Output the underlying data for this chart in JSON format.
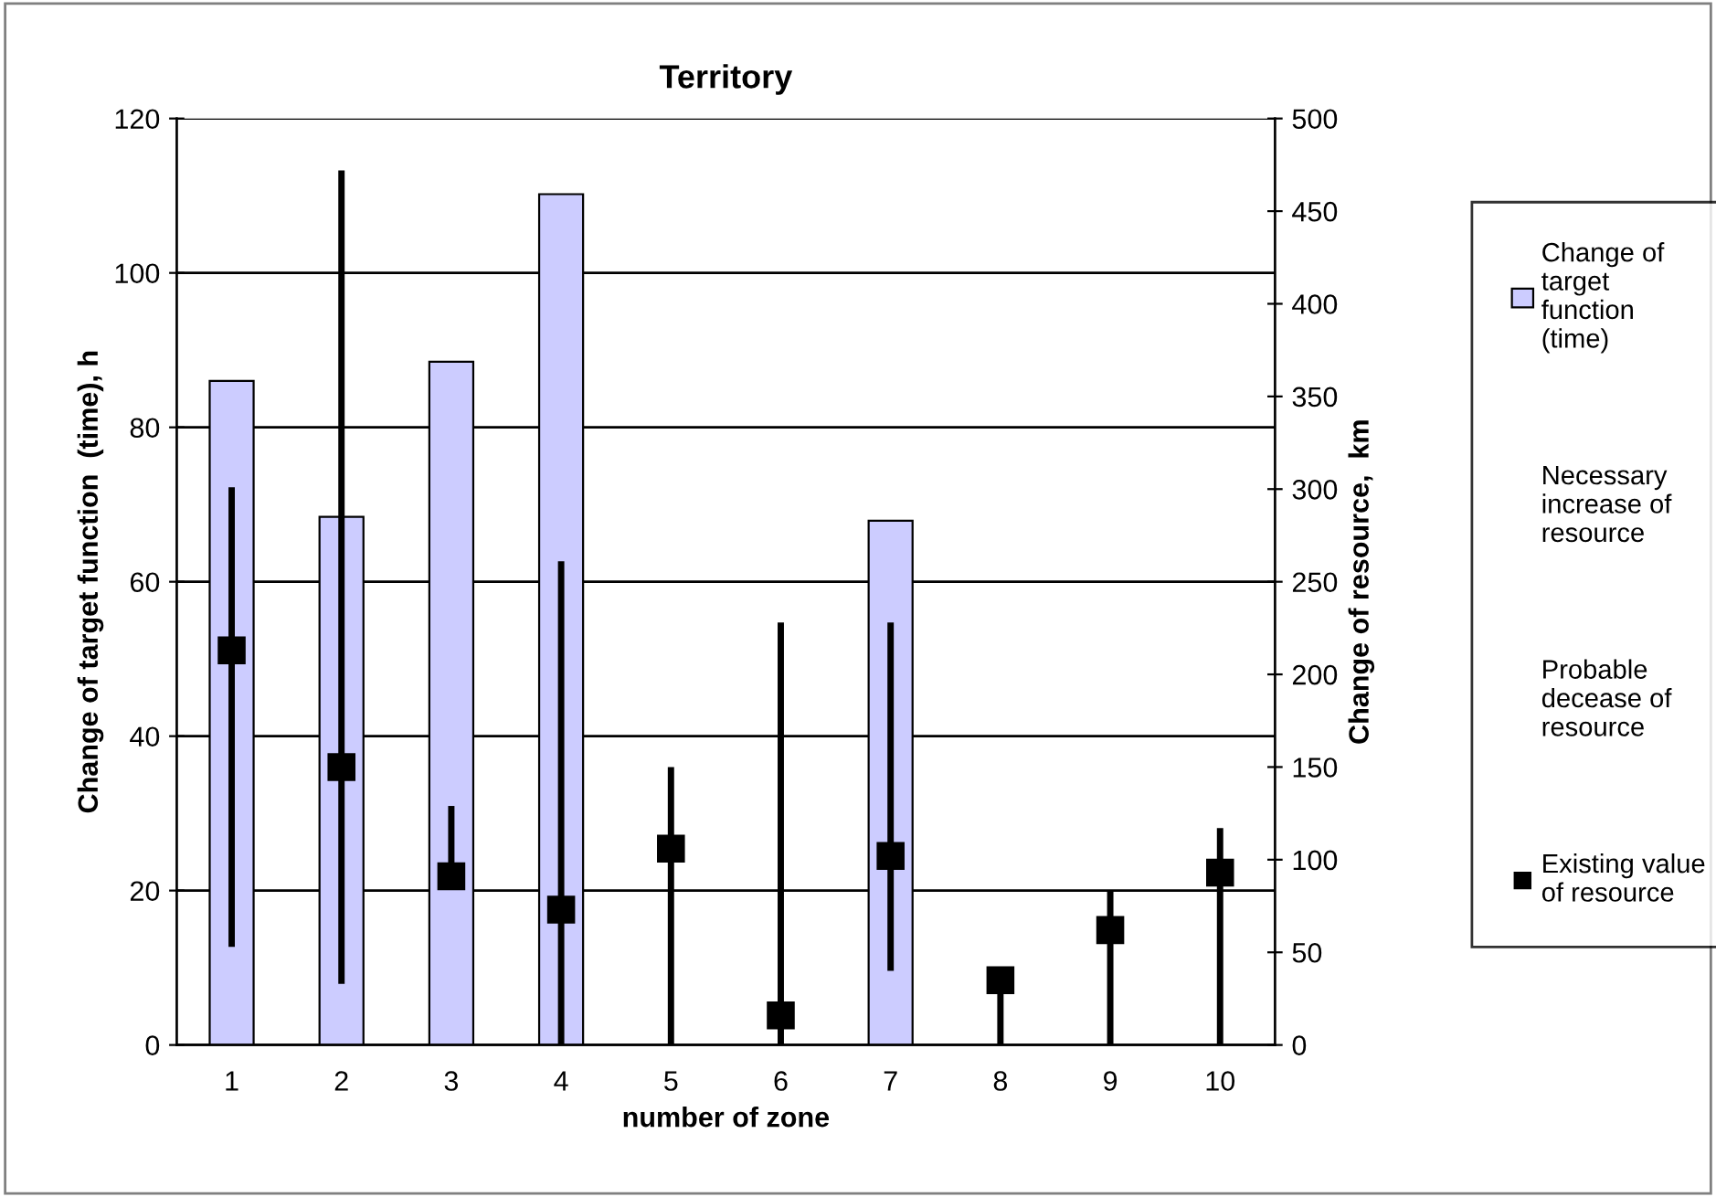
{
  "chart_data": {
    "type": "bar",
    "title": "Territory",
    "xlabel": "number of zone",
    "ylabel": "Change of target function  (time), h",
    "y2label": "Change of resource,  km",
    "categories": [
      "1",
      "2",
      "3",
      "4",
      "5",
      "6",
      "7",
      "8",
      "9",
      "10"
    ],
    "series": [
      {
        "name": "Change of target function (time)",
        "color": "#ccccff",
        "values": [
          86,
          68.4,
          88.5,
          110.2,
          null,
          null,
          67.9,
          null,
          null,
          null
        ]
      },
      {
        "name": "Existing value of resource",
        "type": "scatter",
        "axis": "y2",
        "color": "#000000",
        "marker": "square",
        "values": [
          213,
          150,
          91,
          73,
          106,
          16,
          102,
          35,
          62,
          93
        ],
        "errors": [
          [
            53,
            301
          ],
          [
            33,
            472
          ],
          [
            91,
            129
          ],
          [
            0,
            261
          ],
          [
            0,
            150
          ],
          [
            0,
            228
          ],
          [
            40,
            228
          ],
          [
            0,
            35
          ],
          [
            0,
            83
          ],
          [
            0,
            117
          ]
        ]
      }
    ],
    "annotations": [
      "Necessary increase of resource",
      "Probable decease of resource"
    ],
    "ylim": [
      0,
      120
    ],
    "yticks": [
      0,
      20,
      40,
      60,
      80,
      100,
      120
    ],
    "y2lim": [
      0,
      500
    ],
    "y2ticks": [
      0,
      50,
      100,
      150,
      200,
      250,
      300,
      350,
      400,
      450,
      500
    ],
    "grid": "y",
    "legend": "right"
  }
}
